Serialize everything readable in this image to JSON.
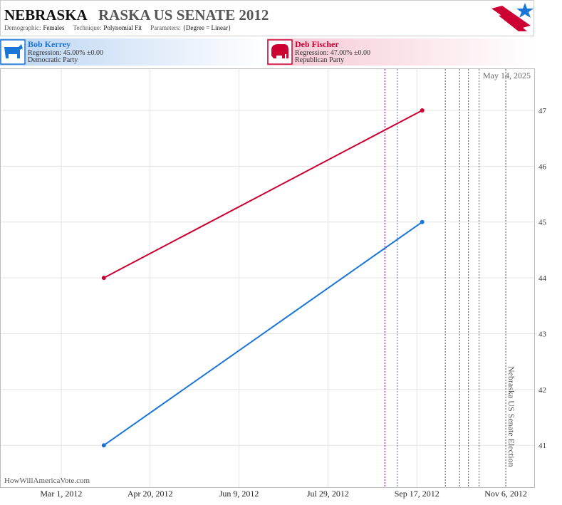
{
  "header": {
    "title_state": "NEBRASKA",
    "title_rest": "RASKA US SENATE 2012",
    "params": [
      {
        "label": "Demographic:",
        "value": "Females"
      },
      {
        "label": "Technique:",
        "value": "Polynomial Fit"
      },
      {
        "label": "Parameters:",
        "value": "{Degree = Linear}"
      }
    ]
  },
  "candidates": [
    {
      "regression": "Regression: 45.00% ±0.00",
      "party": "Democratic Party"
    },
    {
      "regression": "Regression: 47.00% ±0.00",
      "party": "Republican Party"
    }
  ],
  "chart_data": {
    "type": "line",
    "x": [
      "2012-03-25",
      "2012-09-20"
    ],
    "series": [
      {
        "name": "Bob Kerrey",
        "color": "#1a75d9",
        "values": [
          41,
          45
        ]
      },
      {
        "name": "Deb Fischer",
        "color": "#cc0033",
        "values": [
          44,
          47
        ]
      }
    ],
    "xlim": [
      "2012-01-27",
      "2012-11-22"
    ],
    "xticks": [
      {
        "value": "2012-03-01",
        "label": "Mar 1, 2012"
      },
      {
        "value": "2012-04-20",
        "label": "Apr 20, 2012"
      },
      {
        "value": "2012-06-09",
        "label": "Jun 9, 2012"
      },
      {
        "value": "2012-07-29",
        "label": "Jul 29, 2012"
      },
      {
        "value": "2012-09-17",
        "label": "Sep 17, 2012"
      },
      {
        "value": "2012-11-06",
        "label": "Nov 6, 2012"
      }
    ],
    "ylim": [
      40.25,
      47.74
    ],
    "yticks": [
      41,
      42,
      43,
      44,
      45,
      46,
      47
    ],
    "grid": true,
    "event_lines": [
      {
        "x": "2012-08-30",
        "color": "#800080"
      },
      {
        "x": "2012-09-06",
        "color": "#1a75d9"
      },
      {
        "x": "2012-10-03",
        "color": "#555555"
      },
      {
        "x": "2012-10-11",
        "color": "#555555"
      },
      {
        "x": "2012-10-16",
        "color": "#555555"
      },
      {
        "x": "2012-10-22",
        "color": "#555555"
      },
      {
        "x": "2012-11-06",
        "color": "#555555"
      }
    ],
    "election_label": "Nebraska US Senate Election",
    "date_stamp": "May 14, 2025",
    "watermark": "HowWillAmericaVote.com"
  }
}
